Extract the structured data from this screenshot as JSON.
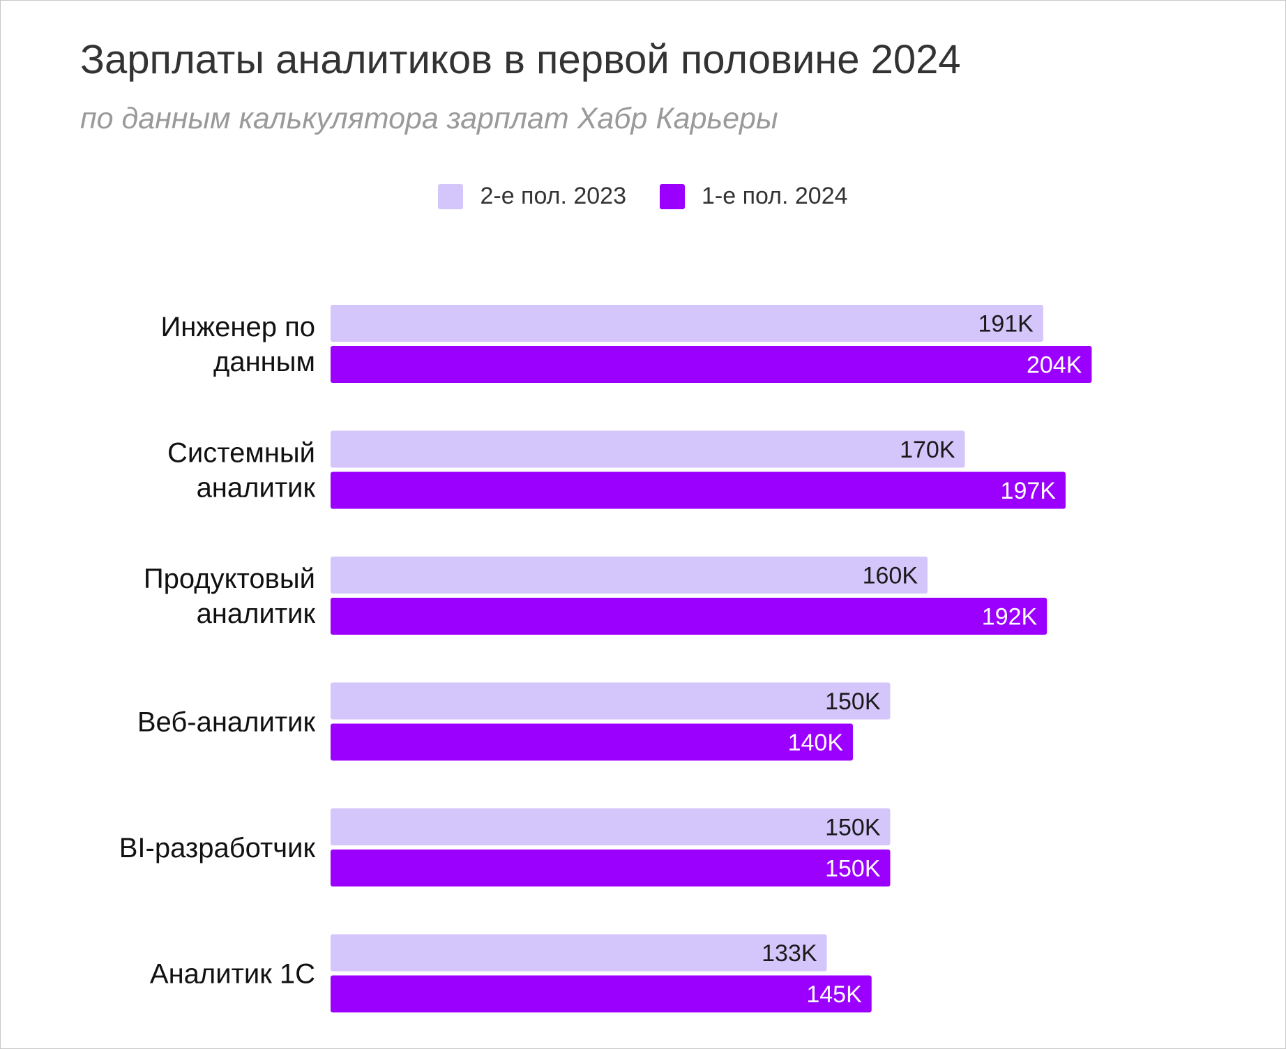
{
  "colors": {
    "series_2023": "#d4c5fb",
    "series_2024": "#9b00ff",
    "label_dark": "#1a1a1a",
    "label_light": "#ffffff"
  },
  "chart_data": {
    "type": "bar",
    "orientation": "horizontal",
    "title": "Зарплаты аналитиков в первой половине 2024",
    "subtitle": "по данным калькулятора зарплат Хабр Карьеры",
    "legend_position": "top-center",
    "grid": false,
    "xlim": [
      0,
      204
    ],
    "categories": [
      [
        "Инженер по",
        "данным"
      ],
      [
        "Системный",
        "аналитик"
      ],
      [
        "Продуктовый",
        "аналитик"
      ],
      [
        "Веб-аналитик"
      ],
      [
        "BI-разработчик"
      ],
      [
        "Аналитик 1С"
      ]
    ],
    "series": [
      {
        "name": "2-е пол. 2023",
        "values": [
          191,
          170,
          160,
          150,
          150,
          133
        ],
        "labels": [
          "191K",
          "170K",
          "160K",
          "150K",
          "150K",
          "133K"
        ]
      },
      {
        "name": "1-е пол. 2024",
        "values": [
          204,
          197,
          192,
          140,
          150,
          145
        ],
        "labels": [
          "204K",
          "197K",
          "192K",
          "140K",
          "150K",
          "145K"
        ]
      }
    ]
  }
}
